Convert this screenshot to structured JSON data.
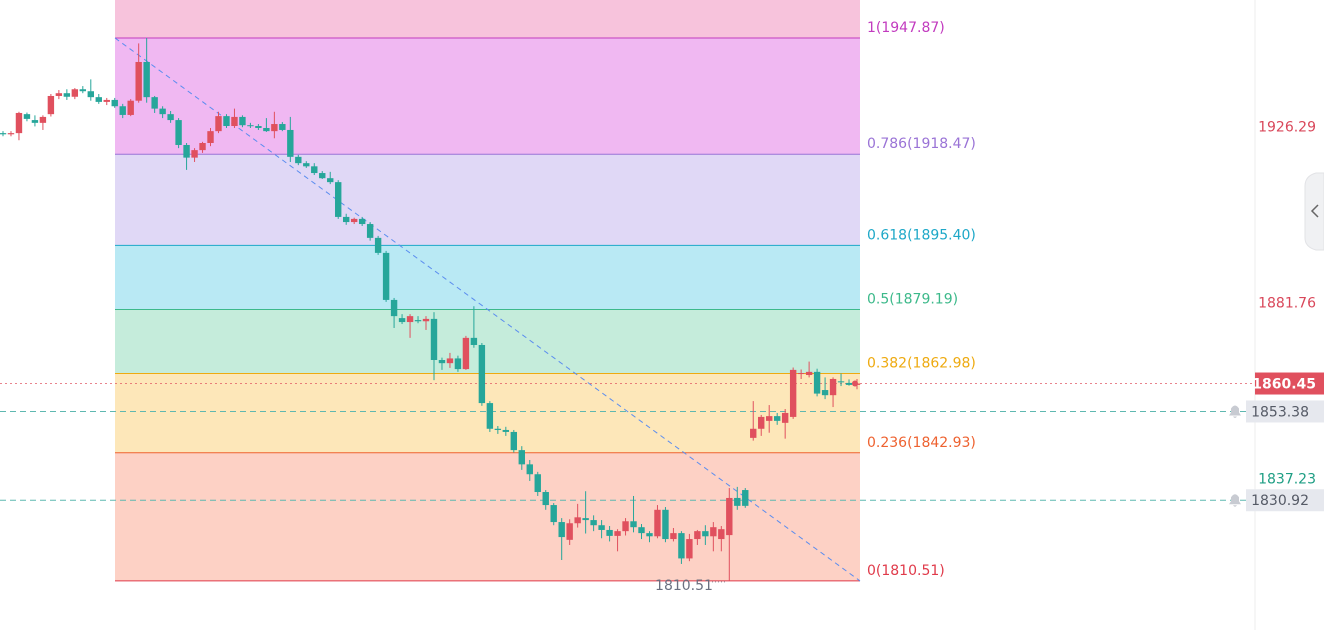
{
  "chart_data": {
    "type": "candlestick",
    "ylim": [
      1798.09,
      1957.48
    ],
    "yticks": [
      1926.29,
      1881.76,
      1837.23
    ],
    "ytick_colors": [
      "#d9475a",
      "#d9475a",
      "#1e9e84"
    ],
    "up_color": "#e0505e",
    "down_color": "#26a69a",
    "candles": [
      [
        1923.8,
        1924.3,
        1923.0,
        1923.5
      ],
      [
        1923.5,
        1924.3,
        1923.0,
        1923.8
      ],
      [
        1923.8,
        1929.2,
        1922.0,
        1928.9
      ],
      [
        1928.6,
        1929.0,
        1926.8,
        1927.4
      ],
      [
        1927.1,
        1928.3,
        1925.5,
        1926.4
      ],
      [
        1926.4,
        1928.3,
        1924.6,
        1927.9
      ],
      [
        1928.6,
        1933.7,
        1928.0,
        1933.2
      ],
      [
        1933.2,
        1934.7,
        1932.4,
        1933.9
      ],
      [
        1933.9,
        1934.9,
        1932.2,
        1933.0
      ],
      [
        1933.0,
        1935.2,
        1932.4,
        1934.9
      ],
      [
        1934.9,
        1935.7,
        1933.9,
        1934.4
      ],
      [
        1934.4,
        1937.4,
        1932.0,
        1932.9
      ],
      [
        1932.9,
        1933.7,
        1931.2,
        1931.7
      ],
      [
        1931.7,
        1932.7,
        1930.9,
        1932.2
      ],
      [
        1932.2,
        1932.7,
        1930.2,
        1930.6
      ],
      [
        1930.6,
        1931.2,
        1927.6,
        1928.4
      ],
      [
        1928.4,
        1932.4,
        1928.1,
        1932.0
      ],
      [
        1932.0,
        1946.5,
        1931.5,
        1941.8
      ],
      [
        1941.8,
        1947.87,
        1931.5,
        1932.9
      ],
      [
        1932.9,
        1933.2,
        1928.9,
        1930.0
      ],
      [
        1930.0,
        1930.6,
        1927.6,
        1928.6
      ],
      [
        1928.6,
        1929.4,
        1926.4,
        1927.1
      ],
      [
        1927.1,
        1927.6,
        1920.0,
        1920.8
      ],
      [
        1920.8,
        1921.3,
        1914.5,
        1917.6
      ],
      [
        1917.6,
        1920.0,
        1916.5,
        1919.5
      ],
      [
        1919.5,
        1921.6,
        1918.8,
        1921.3
      ],
      [
        1921.3,
        1925.1,
        1920.5,
        1924.3
      ],
      [
        1924.3,
        1929.2,
        1923.8,
        1928.1
      ],
      [
        1928.1,
        1928.6,
        1925.1,
        1925.6
      ],
      [
        1925.6,
        1930.0,
        1925.1,
        1927.9
      ],
      [
        1927.9,
        1928.3,
        1925.3,
        1925.8
      ],
      [
        1925.8,
        1926.4,
        1925.1,
        1925.6
      ],
      [
        1925.6,
        1926.1,
        1924.6,
        1925.1
      ],
      [
        1925.1,
        1927.6,
        1924.1,
        1924.3
      ],
      [
        1924.3,
        1929.2,
        1922.5,
        1926.1
      ],
      [
        1926.1,
        1926.6,
        1924.3,
        1924.6
      ],
      [
        1924.6,
        1927.9,
        1916.5,
        1917.8
      ],
      [
        1917.8,
        1918.3,
        1915.7,
        1916.2
      ],
      [
        1916.2,
        1916.7,
        1915.0,
        1915.4
      ],
      [
        1915.4,
        1916.2,
        1913.2,
        1913.7
      ],
      [
        1913.7,
        1914.2,
        1912.2,
        1912.4
      ],
      [
        1912.4,
        1914.0,
        1910.9,
        1911.4
      ],
      [
        1911.4,
        1911.9,
        1902.1,
        1902.6
      ],
      [
        1902.6,
        1903.4,
        1900.6,
        1901.3
      ],
      [
        1901.3,
        1902.4,
        1900.8,
        1902.1
      ],
      [
        1902.1,
        1902.6,
        1900.3,
        1900.8
      ],
      [
        1900.8,
        1901.3,
        1896.6,
        1897.3
      ],
      [
        1897.3,
        1897.8,
        1893.0,
        1893.5
      ],
      [
        1893.5,
        1894.0,
        1881.1,
        1881.6
      ],
      [
        1881.6,
        1882.1,
        1874.5,
        1877.5
      ],
      [
        1877.0,
        1878.0,
        1875.5,
        1876.0
      ],
      [
        1876.0,
        1878.0,
        1872.0,
        1877.5
      ],
      [
        1876.5,
        1877.5,
        1875.7,
        1876.2
      ],
      [
        1876.2,
        1877.5,
        1874.0,
        1876.8
      ],
      [
        1876.8,
        1878.5,
        1861.3,
        1866.4
      ],
      [
        1866.4,
        1867.0,
        1863.9,
        1865.6
      ],
      [
        1865.6,
        1868.2,
        1864.4,
        1866.8
      ],
      [
        1866.8,
        1867.5,
        1863.4,
        1864.1
      ],
      [
        1864.1,
        1872.5,
        1863.9,
        1872.0
      ],
      [
        1872.0,
        1880.0,
        1869.5,
        1870.2
      ],
      [
        1870.2,
        1870.7,
        1854.8,
        1855.5
      ],
      [
        1855.5,
        1856.0,
        1848.2,
        1849.0
      ],
      [
        1849.0,
        1849.7,
        1847.7,
        1848.7
      ],
      [
        1848.7,
        1849.5,
        1847.2,
        1848.2
      ],
      [
        1848.2,
        1848.7,
        1843.0,
        1843.6
      ],
      [
        1843.6,
        1844.6,
        1838.6,
        1840.0
      ],
      [
        1840.0,
        1841.1,
        1835.8,
        1837.5
      ],
      [
        1837.5,
        1838.1,
        1832.0,
        1833.0
      ],
      [
        1833.0,
        1833.5,
        1828.5,
        1829.7
      ],
      [
        1829.7,
        1830.2,
        1824.6,
        1825.4
      ],
      [
        1825.4,
        1826.4,
        1815.8,
        1821.6
      ],
      [
        1820.9,
        1826.1,
        1819.6,
        1825.1
      ],
      [
        1825.1,
        1830.0,
        1824.0,
        1826.6
      ],
      [
        1826.4,
        1833.2,
        1822.5,
        1825.9
      ],
      [
        1825.9,
        1827.1,
        1823.1,
        1824.6
      ],
      [
        1824.6,
        1825.9,
        1821.3,
        1823.4
      ],
      [
        1823.4,
        1824.4,
        1820.5,
        1821.9
      ],
      [
        1821.9,
        1823.6,
        1818.0,
        1823.1
      ],
      [
        1823.1,
        1826.4,
        1822.0,
        1825.6
      ],
      [
        1825.6,
        1832.0,
        1822.8,
        1824.1
      ],
      [
        1824.1,
        1824.9,
        1821.1,
        1822.6
      ],
      [
        1822.6,
        1823.1,
        1820.3,
        1821.8
      ],
      [
        1821.8,
        1829.7,
        1821.3,
        1828.5
      ],
      [
        1828.5,
        1829.2,
        1820.3,
        1821.1
      ],
      [
        1821.1,
        1823.9,
        1820.5,
        1822.6
      ],
      [
        1822.6,
        1823.1,
        1814.8,
        1816.2
      ],
      [
        1816.2,
        1822.4,
        1815.5,
        1821.1
      ],
      [
        1821.1,
        1823.4,
        1819.6,
        1823.1
      ],
      [
        1823.1,
        1824.6,
        1819.6,
        1821.8
      ],
      [
        1821.8,
        1825.4,
        1818.0,
        1824.1
      ],
      [
        1821.1,
        1824.4,
        1818.0,
        1823.6
      ],
      [
        1822.1,
        1834.0,
        1810.51,
        1831.5
      ],
      [
        1831.5,
        1834.3,
        1828.5,
        1829.5
      ],
      [
        1833.5,
        1834.0,
        1829.0,
        1829.5
      ],
      [
        1846.7,
        1856.0,
        1846.0,
        1849.0
      ],
      [
        1849.0,
        1852.5,
        1847.2,
        1852.0
      ],
      [
        1851.0,
        1855.0,
        1848.0,
        1852.2
      ],
      [
        1852.2,
        1853.0,
        1850.0,
        1851.0
      ],
      [
        1850.5,
        1854.0,
        1846.5,
        1853.0
      ],
      [
        1852.0,
        1864.5,
        1851.5,
        1863.9
      ],
      [
        1862.9,
        1864.0,
        1861.6,
        1863.1
      ],
      [
        1862.6,
        1866.0,
        1862.0,
        1863.4
      ],
      [
        1863.4,
        1864.2,
        1857.2,
        1857.9
      ],
      [
        1858.8,
        1862.0,
        1856.5,
        1857.5
      ],
      [
        1857.5,
        1862.0,
        1854.5,
        1861.6
      ],
      [
        1861.0,
        1863.0,
        1859.8,
        1860.8
      ],
      [
        1860.6,
        1861.5,
        1859.9,
        1860.1
      ],
      [
        1860.1,
        1861.6,
        1859.0,
        1860.45
      ]
    ],
    "fib_top_fill": "#f7c3dc",
    "fib_levels": [
      {
        "label": "1(1947.87)",
        "value": 1947.87,
        "color": "#c23bbf",
        "fill": "#f0b8f2"
      },
      {
        "label": "0.786(1918.47)",
        "value": 1918.47,
        "color": "#9a73d6",
        "fill": "#e0d8f6"
      },
      {
        "label": "0.618(1895.40)",
        "value": 1895.4,
        "color": "#1ea8c8",
        "fill": "#b9e9f4"
      },
      {
        "label": "0.5(1879.19)",
        "value": 1879.19,
        "color": "#3cb98a",
        "fill": "#c5ecdb"
      },
      {
        "label": "0.382(1862.98)",
        "value": 1862.98,
        "color": "#eeaa10",
        "fill": "#fde7b9"
      },
      {
        "label": "0.236(1842.93)",
        "value": 1842.93,
        "color": "#ee6230",
        "fill": "#fdd1c5"
      },
      {
        "label": "0(1810.51)",
        "value": 1810.51,
        "color": "#e03a4a"
      }
    ],
    "current_price": {
      "value": 1860.45,
      "color": "#e0505e"
    },
    "alerts": [
      1853.38,
      1830.92
    ],
    "alert_color": "#5fb8b0",
    "low_marker": 1810.51
  }
}
